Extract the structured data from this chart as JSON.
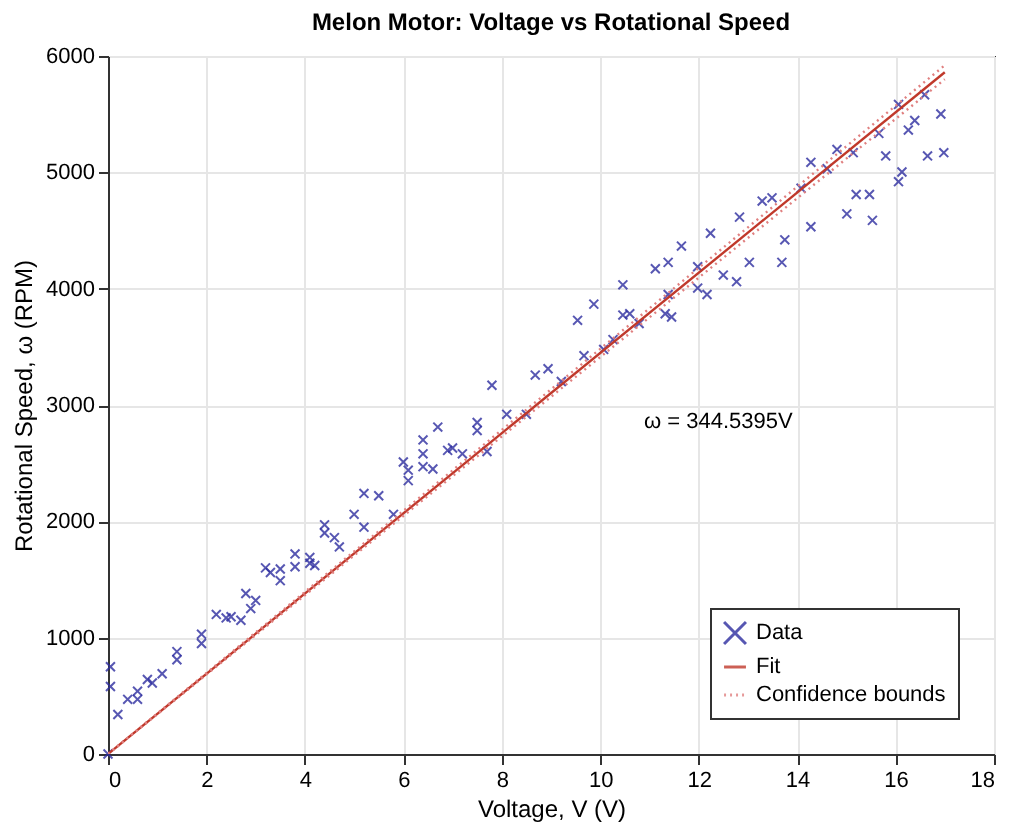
{
  "chart_data": {
    "type": "scatter",
    "title": "Melon Motor: Voltage vs Rotational Speed",
    "xlabel": "Voltage, V (V)",
    "ylabel": "Rotational Speed, ω (RPM)",
    "xlim": [
      0,
      18
    ],
    "xticks": [
      0,
      2,
      4,
      6,
      8,
      10,
      12,
      14,
      16,
      18
    ],
    "ylim": [
      0,
      6000
    ],
    "yticks": [
      0,
      1000,
      2000,
      3000,
      4000,
      5000,
      6000
    ],
    "grid": true,
    "legend": "bottom right",
    "annotations": [
      "ω = 344.5395V"
    ],
    "series": [
      {
        "name": "Data",
        "marker": "cross",
        "color": "#2e2ea0",
        "x": [
          0.05,
          0.05,
          0.2,
          0.0,
          0.4,
          0.6,
          0.6,
          0.8,
          0.9,
          1.1,
          1.4,
          1.4,
          1.9,
          1.9,
          2.2,
          2.4,
          2.5,
          2.7,
          2.8,
          2.9,
          3.0,
          3.2,
          3.3,
          3.5,
          3.5,
          3.8,
          3.8,
          4.1,
          4.1,
          4.2,
          4.4,
          4.4,
          4.6,
          4.7,
          5.0,
          5.2,
          5.2,
          5.5,
          5.8,
          6.0,
          6.1,
          6.1,
          6.4,
          6.4,
          6.4,
          6.6,
          6.7,
          6.9,
          7.0,
          7.2,
          7.5,
          7.5,
          7.7,
          7.8,
          8.1,
          8.5,
          8.68,
          8.94,
          9.21,
          9.54,
          9.67,
          9.87,
          10.07,
          10.26,
          10.46,
          10.46,
          10.6,
          10.79,
          11.12,
          11.32,
          11.38,
          11.38,
          11.45,
          11.65,
          11.98,
          11.98,
          12.17,
          12.24,
          12.5,
          12.77,
          12.83,
          13.03,
          13.29,
          13.49,
          13.69,
          13.75,
          14.08,
          14.28,
          14.28,
          14.61,
          14.81,
          15.01,
          15.14,
          15.2,
          15.47,
          15.53,
          15.66,
          15.8,
          16.06,
          16.06,
          16.13,
          16.26,
          16.39,
          16.59,
          16.65,
          16.92,
          16.98
        ],
        "values": [
          750,
          580,
          340,
          0,
          470,
          540,
          470,
          640,
          610,
          690,
          880,
          810,
          1030,
          950,
          1200,
          1170,
          1180,
          1150,
          1380,
          1250,
          1320,
          1600,
          1560,
          1490,
          1590,
          1720,
          1610,
          1690,
          1640,
          1620,
          1970,
          1900,
          1860,
          1780,
          2060,
          2240,
          1950,
          2220,
          2060,
          2510,
          2350,
          2440,
          2700,
          2580,
          2470,
          2450,
          2810,
          2610,
          2630,
          2580,
          2850,
          2780,
          2600,
          3170,
          2920,
          2920,
          3257,
          3312,
          3202,
          3728,
          3424,
          3867,
          3478,
          3562,
          4033,
          3773,
          3784,
          3701,
          4171,
          3784,
          4226,
          3950,
          3756,
          4366,
          4005,
          4188,
          3950,
          4476,
          4117,
          4060,
          4615,
          4226,
          4753,
          4781,
          4226,
          4420,
          4864,
          4532,
          5086,
          5031,
          5197,
          4643,
          5169,
          4809,
          4809,
          4587,
          5335,
          5141,
          5584,
          4920,
          5003,
          5363,
          5446,
          5667,
          5141,
          5501,
          5169
        ]
      },
      {
        "name": "Fit",
        "type": "line",
        "line_style": "solid",
        "color": "#c0392b",
        "x": [
          0,
          17
        ],
        "values": [
          0,
          5860
        ]
      },
      {
        "name": "Confidence bounds",
        "type": "line",
        "line_style": "dotted",
        "color": "#e08080",
        "x": [
          0,
          17
        ],
        "values": [
          0,
          5920
        ]
      },
      {
        "type": "line",
        "line_style": "dotted",
        "color": "#e08080",
        "x": [
          0,
          17
        ],
        "values": [
          0,
          5800
        ]
      }
    ]
  }
}
